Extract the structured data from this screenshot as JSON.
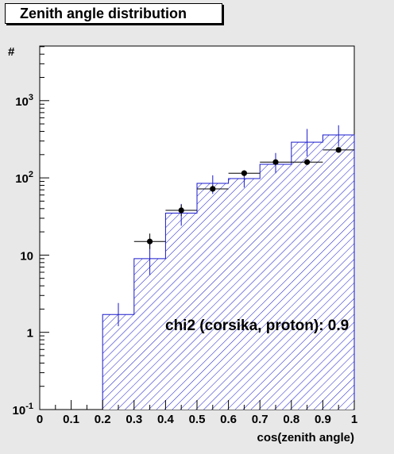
{
  "chart_data": {
    "type": "bar",
    "title": "Zenith angle distribution",
    "xlabel": "cos(zenith angle)",
    "ylabel": "#",
    "xlim": [
      0,
      1
    ],
    "ylim": [
      0.1,
      5000
    ],
    "yscale": "log",
    "grid": false,
    "x_ticks": [
      "0",
      "0.1",
      "0.2",
      "0.3",
      "0.4",
      "0.5",
      "0.6",
      "0.7",
      "0.8",
      "0.9",
      "1"
    ],
    "y_ticks": [
      {
        "base": "10",
        "exp": "-1",
        "value": 0.1
      },
      {
        "base": "1",
        "exp": "",
        "value": 1
      },
      {
        "base": "10",
        "exp": "",
        "value": 10
      },
      {
        "base": "10",
        "exp": "2",
        "value": 100
      },
      {
        "base": "10",
        "exp": "3",
        "value": 1000
      }
    ],
    "bin_edges": [
      0,
      0.1,
      0.2,
      0.3,
      0.4,
      0.5,
      0.6,
      0.7,
      0.8,
      0.9,
      1.0
    ],
    "series": [
      {
        "style": "hatched-histogram",
        "color": "#1a1acc",
        "values": [
          0,
          0,
          1.7,
          9.0,
          35,
          85,
          98,
          150,
          290,
          360
        ],
        "errors_low": [
          0,
          0,
          1.2,
          5.5,
          24,
          62,
          75,
          115,
          190,
          255
        ],
        "errors_high": [
          0,
          0,
          2.4,
          14,
          46,
          108,
          125,
          210,
          430,
          480
        ]
      },
      {
        "style": "points",
        "color": "#000000",
        "values": [
          null,
          null,
          null,
          15,
          38,
          72,
          115,
          160,
          160,
          230
        ],
        "errors_low": [
          null,
          null,
          null,
          12,
          32,
          66,
          105,
          150,
          150,
          215
        ],
        "errors_high": [
          null,
          null,
          null,
          19,
          45,
          80,
          125,
          172,
          170,
          245
        ]
      }
    ],
    "annotations": [
      "chi2 (corsika, proton): 0.9"
    ],
    "colors": {
      "hist": "#1a1acc",
      "points": "#000000",
      "frame_bg": "#e8e8e8",
      "plot_bg": "#ffffff"
    }
  }
}
